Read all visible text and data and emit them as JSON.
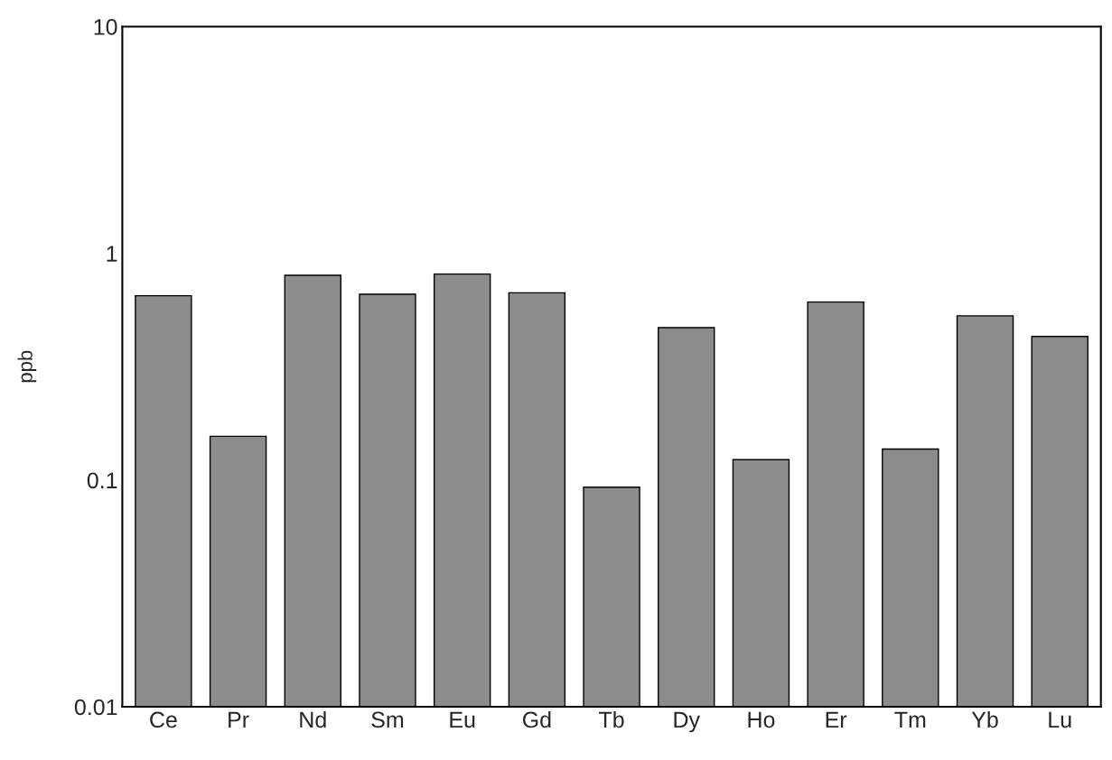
{
  "chart_data": {
    "type": "bar",
    "ylabel": "ppb",
    "categories": [
      "Ce",
      "Pr",
      "Nd",
      "Sm",
      "Eu",
      "Gd",
      "Tb",
      "Dy",
      "Ho",
      "Er",
      "Tm",
      "Yb",
      "Lu"
    ],
    "values": [
      0.65,
      0.156,
      0.8,
      0.66,
      0.81,
      0.67,
      0.093,
      0.47,
      0.123,
      0.61,
      0.137,
      0.53,
      0.43
    ],
    "color": "#8c8c8c",
    "log": true,
    "ylim": [
      0.01,
      10
    ],
    "yticks": [
      0.01,
      0.1,
      1,
      10
    ],
    "grid": false,
    "legend": false
  }
}
